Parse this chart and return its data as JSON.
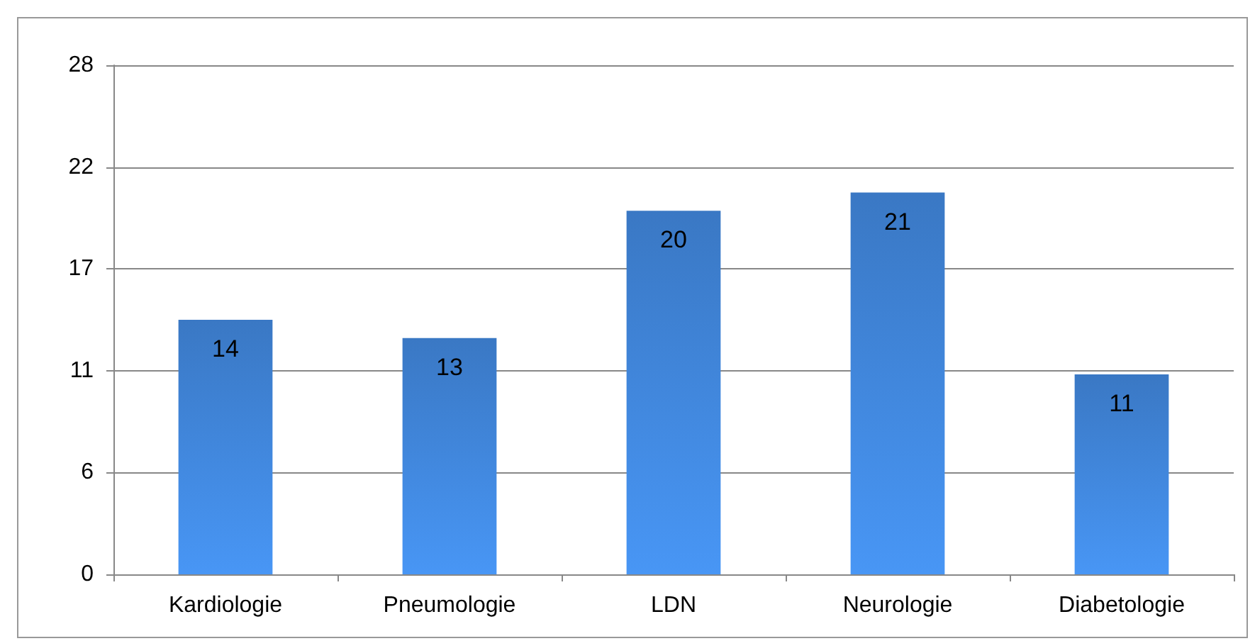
{
  "chart_data": {
    "type": "bar",
    "categories": [
      "Kardiologie",
      "Pneumologie",
      "LDN",
      "Neurologie",
      "Diabetologie"
    ],
    "values": [
      14,
      13,
      20,
      21,
      11
    ],
    "color": "#3a78c4",
    "ylim": [
      0,
      28
    ],
    "yticks": [
      0,
      {
        "value": 5.6,
        "label": "6"
      },
      {
        "value": 11.2,
        "label": "11"
      },
      {
        "value": 16.8,
        "label": "17"
      },
      {
        "value": 22.4,
        "label": "22"
      },
      28
    ],
    "grid": "y",
    "data_labels": true
  }
}
